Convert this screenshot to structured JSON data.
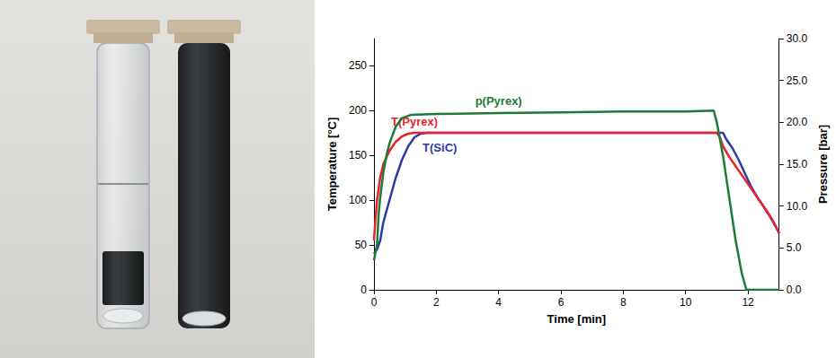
{
  "chart_data": {
    "type": "line",
    "x_label": "Time [min]",
    "y_label": "Temperature [°C]",
    "y2_label": "Pressure [bar]",
    "xlim": [
      0,
      13
    ],
    "xticks": [
      0,
      2,
      4,
      6,
      8,
      10,
      12
    ],
    "ylim": [
      0,
      280
    ],
    "yticks": [
      0,
      50,
      100,
      150,
      200,
      250
    ],
    "y2lim": [
      0,
      30
    ],
    "y2ticks": [
      {
        "value": 0,
        "label": "0.0"
      },
      {
        "value": 5,
        "label": "5.0"
      },
      {
        "value": 10,
        "label": "10.0"
      },
      {
        "value": 15,
        "label": "15.0"
      },
      {
        "value": 20,
        "label": "20.0"
      },
      {
        "value": 25,
        "label": "25.0"
      },
      {
        "value": 30,
        "label": "30.0"
      }
    ],
    "grid": false,
    "series": [
      {
        "name": "p(Pyrex)",
        "color": "#1e7b34",
        "axis": "y2",
        "x": [
          0,
          0.1,
          0.15,
          0.2,
          0.3,
          0.4,
          0.5,
          0.7,
          0.9,
          1.2,
          2,
          4,
          6,
          8,
          10,
          10.9,
          11.0,
          11.2,
          11.4,
          11.6,
          11.8,
          11.95,
          13
        ],
        "values": [
          3.5,
          5.5,
          9,
          11,
          14,
          16,
          17.5,
          19.5,
          20.5,
          20.9,
          21.0,
          21.1,
          21.2,
          21.3,
          21.3,
          21.4,
          20,
          16,
          11,
          6,
          2,
          0,
          0
        ]
      },
      {
        "name": "T(Pyrex)",
        "color": "#e8242b",
        "x": [
          0,
          0.05,
          0.1,
          0.2,
          0.3,
          0.5,
          0.7,
          0.9,
          1.1,
          1.3,
          2,
          4,
          6,
          8,
          10,
          11.0,
          11.1,
          11.2,
          11.4,
          11.6,
          11.8,
          12.0,
          12.2,
          12.4,
          12.6,
          12.8,
          13
        ],
        "values": [
          55,
          80,
          100,
          125,
          140,
          155,
          165,
          171,
          174,
          175,
          175,
          175,
          175,
          175,
          175,
          175,
          170,
          160,
          148,
          138,
          128,
          118,
          108,
          98,
          88,
          77,
          63
        ]
      },
      {
        "name": "T(SiC)",
        "color": "#2a3aa8",
        "x": [
          0,
          0.1,
          0.2,
          0.3,
          0.5,
          0.7,
          0.9,
          1.1,
          1.3,
          1.5,
          1.7,
          2,
          4,
          6,
          8,
          10,
          11.0,
          11.2,
          11.3,
          11.5,
          11.7,
          11.9,
          12.1,
          12.3,
          12.5,
          12.7,
          12.9,
          13
        ],
        "values": [
          40,
          45,
          55,
          75,
          100,
          125,
          145,
          160,
          170,
          174,
          175,
          175,
          175,
          175,
          175,
          175,
          175,
          175,
          168,
          158,
          145,
          130,
          115,
          103,
          93,
          82,
          70,
          63
        ]
      }
    ]
  }
}
